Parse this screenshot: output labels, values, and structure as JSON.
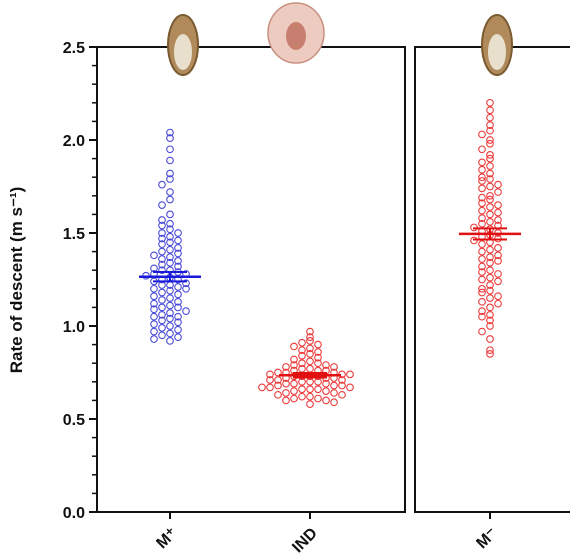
{
  "chart_data": {
    "type": "strip",
    "y_label": "Rate of descent (m s⁻¹)",
    "categories": [
      "M⁺",
      "IND",
      "M⁻"
    ],
    "ylim": [
      0,
      2.5
    ],
    "yticks": [
      {
        "value": 0,
        "label": "0.0"
      },
      0.5,
      {
        "value": 1,
        "label": "1.0"
      },
      1.5,
      {
        "value": 2,
        "label": "2.0"
      },
      2.5
    ],
    "groups": [
      {
        "color": "#4a4ad8",
        "mean_color": "#1a1adb",
        "mean": 1.265,
        "sem": 0.025,
        "values": [
          2.04,
          2.01,
          1.95,
          1.89,
          1.82,
          1.79,
          1.76,
          1.72,
          1.68,
          1.65,
          1.6,
          1.57,
          1.55,
          1.54,
          1.52,
          1.5,
          1.5,
          1.48,
          1.47,
          1.46,
          1.45,
          1.44,
          1.42,
          1.41,
          1.4,
          1.39,
          1.38,
          1.37,
          1.36,
          1.35,
          1.34,
          1.33,
          1.32,
          1.31,
          1.3,
          1.3,
          1.29,
          1.28,
          1.28,
          1.27,
          1.26,
          1.25,
          1.25,
          1.24,
          1.23,
          1.22,
          1.22,
          1.21,
          1.2,
          1.2,
          1.19,
          1.18,
          1.17,
          1.16,
          1.15,
          1.14,
          1.13,
          1.12,
          1.11,
          1.1,
          1.1,
          1.09,
          1.08,
          1.07,
          1.06,
          1.05,
          1.05,
          1.04,
          1.03,
          1.02,
          1.01,
          1.0,
          0.99,
          0.98,
          0.97,
          0.96,
          0.95,
          0.94,
          0.93,
          0.92
        ]
      },
      {
        "color": "#ee3a3a",
        "mean_color": "#e01010",
        "mean": 0.735,
        "sem": 0.012,
        "values": [
          0.97,
          0.94,
          0.92,
          0.91,
          0.9,
          0.89,
          0.88,
          0.87,
          0.86,
          0.85,
          0.84,
          0.83,
          0.82,
          0.81,
          0.8,
          0.8,
          0.79,
          0.79,
          0.78,
          0.78,
          0.77,
          0.77,
          0.76,
          0.76,
          0.76,
          0.75,
          0.75,
          0.75,
          0.74,
          0.74,
          0.74,
          0.73,
          0.73,
          0.73,
          0.73,
          0.72,
          0.72,
          0.72,
          0.71,
          0.71,
          0.71,
          0.7,
          0.7,
          0.7,
          0.69,
          0.69,
          0.69,
          0.68,
          0.68,
          0.68,
          0.67,
          0.67,
          0.67,
          0.66,
          0.66,
          0.66,
          0.65,
          0.65,
          0.64,
          0.64,
          0.63,
          0.63,
          0.62,
          0.62,
          0.61,
          0.61,
          0.6,
          0.6,
          0.59,
          0.58
        ]
      },
      {
        "color": "#ee3a3a",
        "mean_color": "#e01010",
        "mean": 1.495,
        "sem": 0.03,
        "values": [
          2.2,
          2.16,
          2.12,
          2.08,
          2.05,
          2.03,
          2.0,
          1.98,
          1.95,
          1.92,
          1.9,
          1.88,
          1.86,
          1.84,
          1.82,
          1.8,
          1.79,
          1.78,
          1.76,
          1.75,
          1.74,
          1.72,
          1.7,
          1.69,
          1.68,
          1.66,
          1.65,
          1.64,
          1.62,
          1.61,
          1.6,
          1.58,
          1.57,
          1.56,
          1.55,
          1.54,
          1.53,
          1.52,
          1.51,
          1.5,
          1.49,
          1.48,
          1.47,
          1.46,
          1.45,
          1.44,
          1.42,
          1.41,
          1.4,
          1.38,
          1.37,
          1.36,
          1.35,
          1.34,
          1.32,
          1.3,
          1.29,
          1.28,
          1.26,
          1.25,
          1.24,
          1.22,
          1.2,
          1.19,
          1.18,
          1.16,
          1.15,
          1.13,
          1.12,
          1.1,
          1.08,
          1.06,
          1.05,
          1.03,
          1.0,
          0.97,
          0.93,
          0.87,
          0.85
        ]
      }
    ]
  }
}
